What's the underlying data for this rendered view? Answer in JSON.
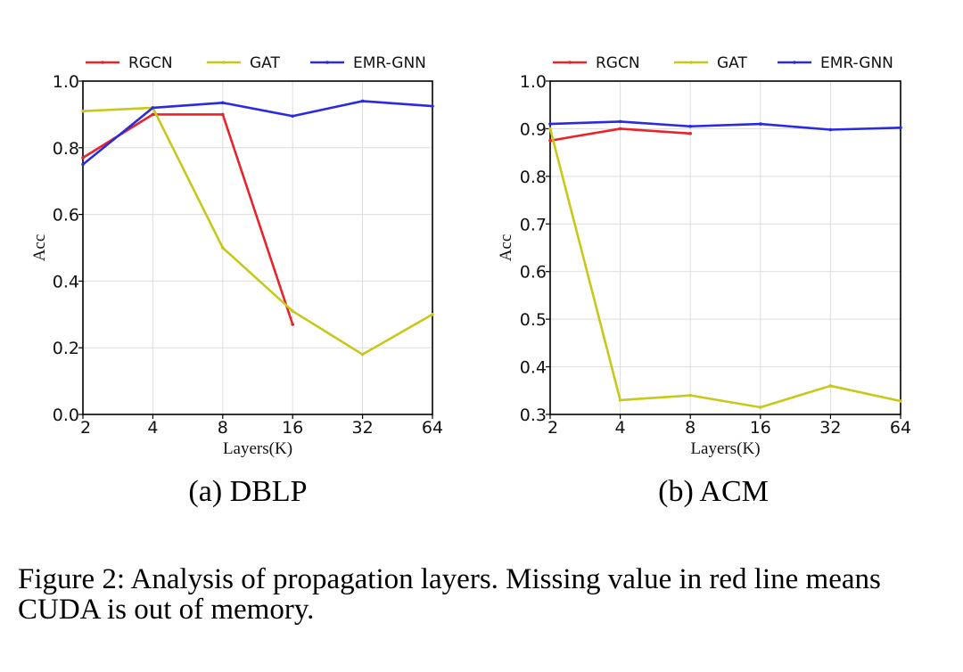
{
  "chart_data": [
    {
      "type": "line",
      "subcaption": "(a) DBLP",
      "xlabel": "Layers(K)",
      "ylabel": "Acc",
      "categories": [
        "2",
        "4",
        "8",
        "16",
        "32",
        "64"
      ],
      "ylim": [
        0.0,
        1.0
      ],
      "yticks": [
        "0.0",
        "0.2",
        "0.4",
        "0.6",
        "0.8",
        "1.0"
      ],
      "yticks_values": [
        0.0,
        0.2,
        0.4,
        0.6,
        0.8,
        1.0
      ],
      "grid": true,
      "legend": "top",
      "series": [
        {
          "name": "RGCN",
          "color": "#e8242a",
          "values": [
            0.77,
            0.9,
            0.9,
            0.27,
            null,
            null
          ]
        },
        {
          "name": "GAT",
          "color": "#c8c81a",
          "values": [
            0.91,
            0.92,
            0.5,
            0.31,
            0.18,
            0.3
          ]
        },
        {
          "name": "EMR-GNN",
          "color": "#2a2ae0",
          "values": [
            0.75,
            0.92,
            0.935,
            0.895,
            0.94,
            0.925
          ]
        }
      ]
    },
    {
      "type": "line",
      "subcaption": "(b) ACM",
      "xlabel": "Layers(K)",
      "ylabel": "Acc",
      "categories": [
        "2",
        "4",
        "8",
        "16",
        "32",
        "64"
      ],
      "ylim": [
        0.3,
        1.0
      ],
      "yticks": [
        "0.3",
        "0.4",
        "0.5",
        "0.6",
        "0.7",
        "0.8",
        "0.9",
        "1.0"
      ],
      "yticks_values": [
        0.3,
        0.4,
        0.5,
        0.6,
        0.7,
        0.8,
        0.9,
        1.0
      ],
      "grid": true,
      "legend": "top",
      "series": [
        {
          "name": "RGCN",
          "color": "#e8242a",
          "values": [
            0.875,
            0.9,
            0.89,
            null,
            null,
            null
          ]
        },
        {
          "name": "GAT",
          "color": "#c8c81a",
          "values": [
            0.9,
            0.33,
            0.34,
            0.315,
            0.36,
            0.328
          ]
        },
        {
          "name": "EMR-GNN",
          "color": "#2a2ae0",
          "values": [
            0.91,
            0.915,
            0.905,
            0.91,
            0.898,
            0.902
          ]
        }
      ]
    }
  ],
  "caption": "Figure 2: Analysis of propagation layers. Missing value in red line means CUDA is out of memory."
}
